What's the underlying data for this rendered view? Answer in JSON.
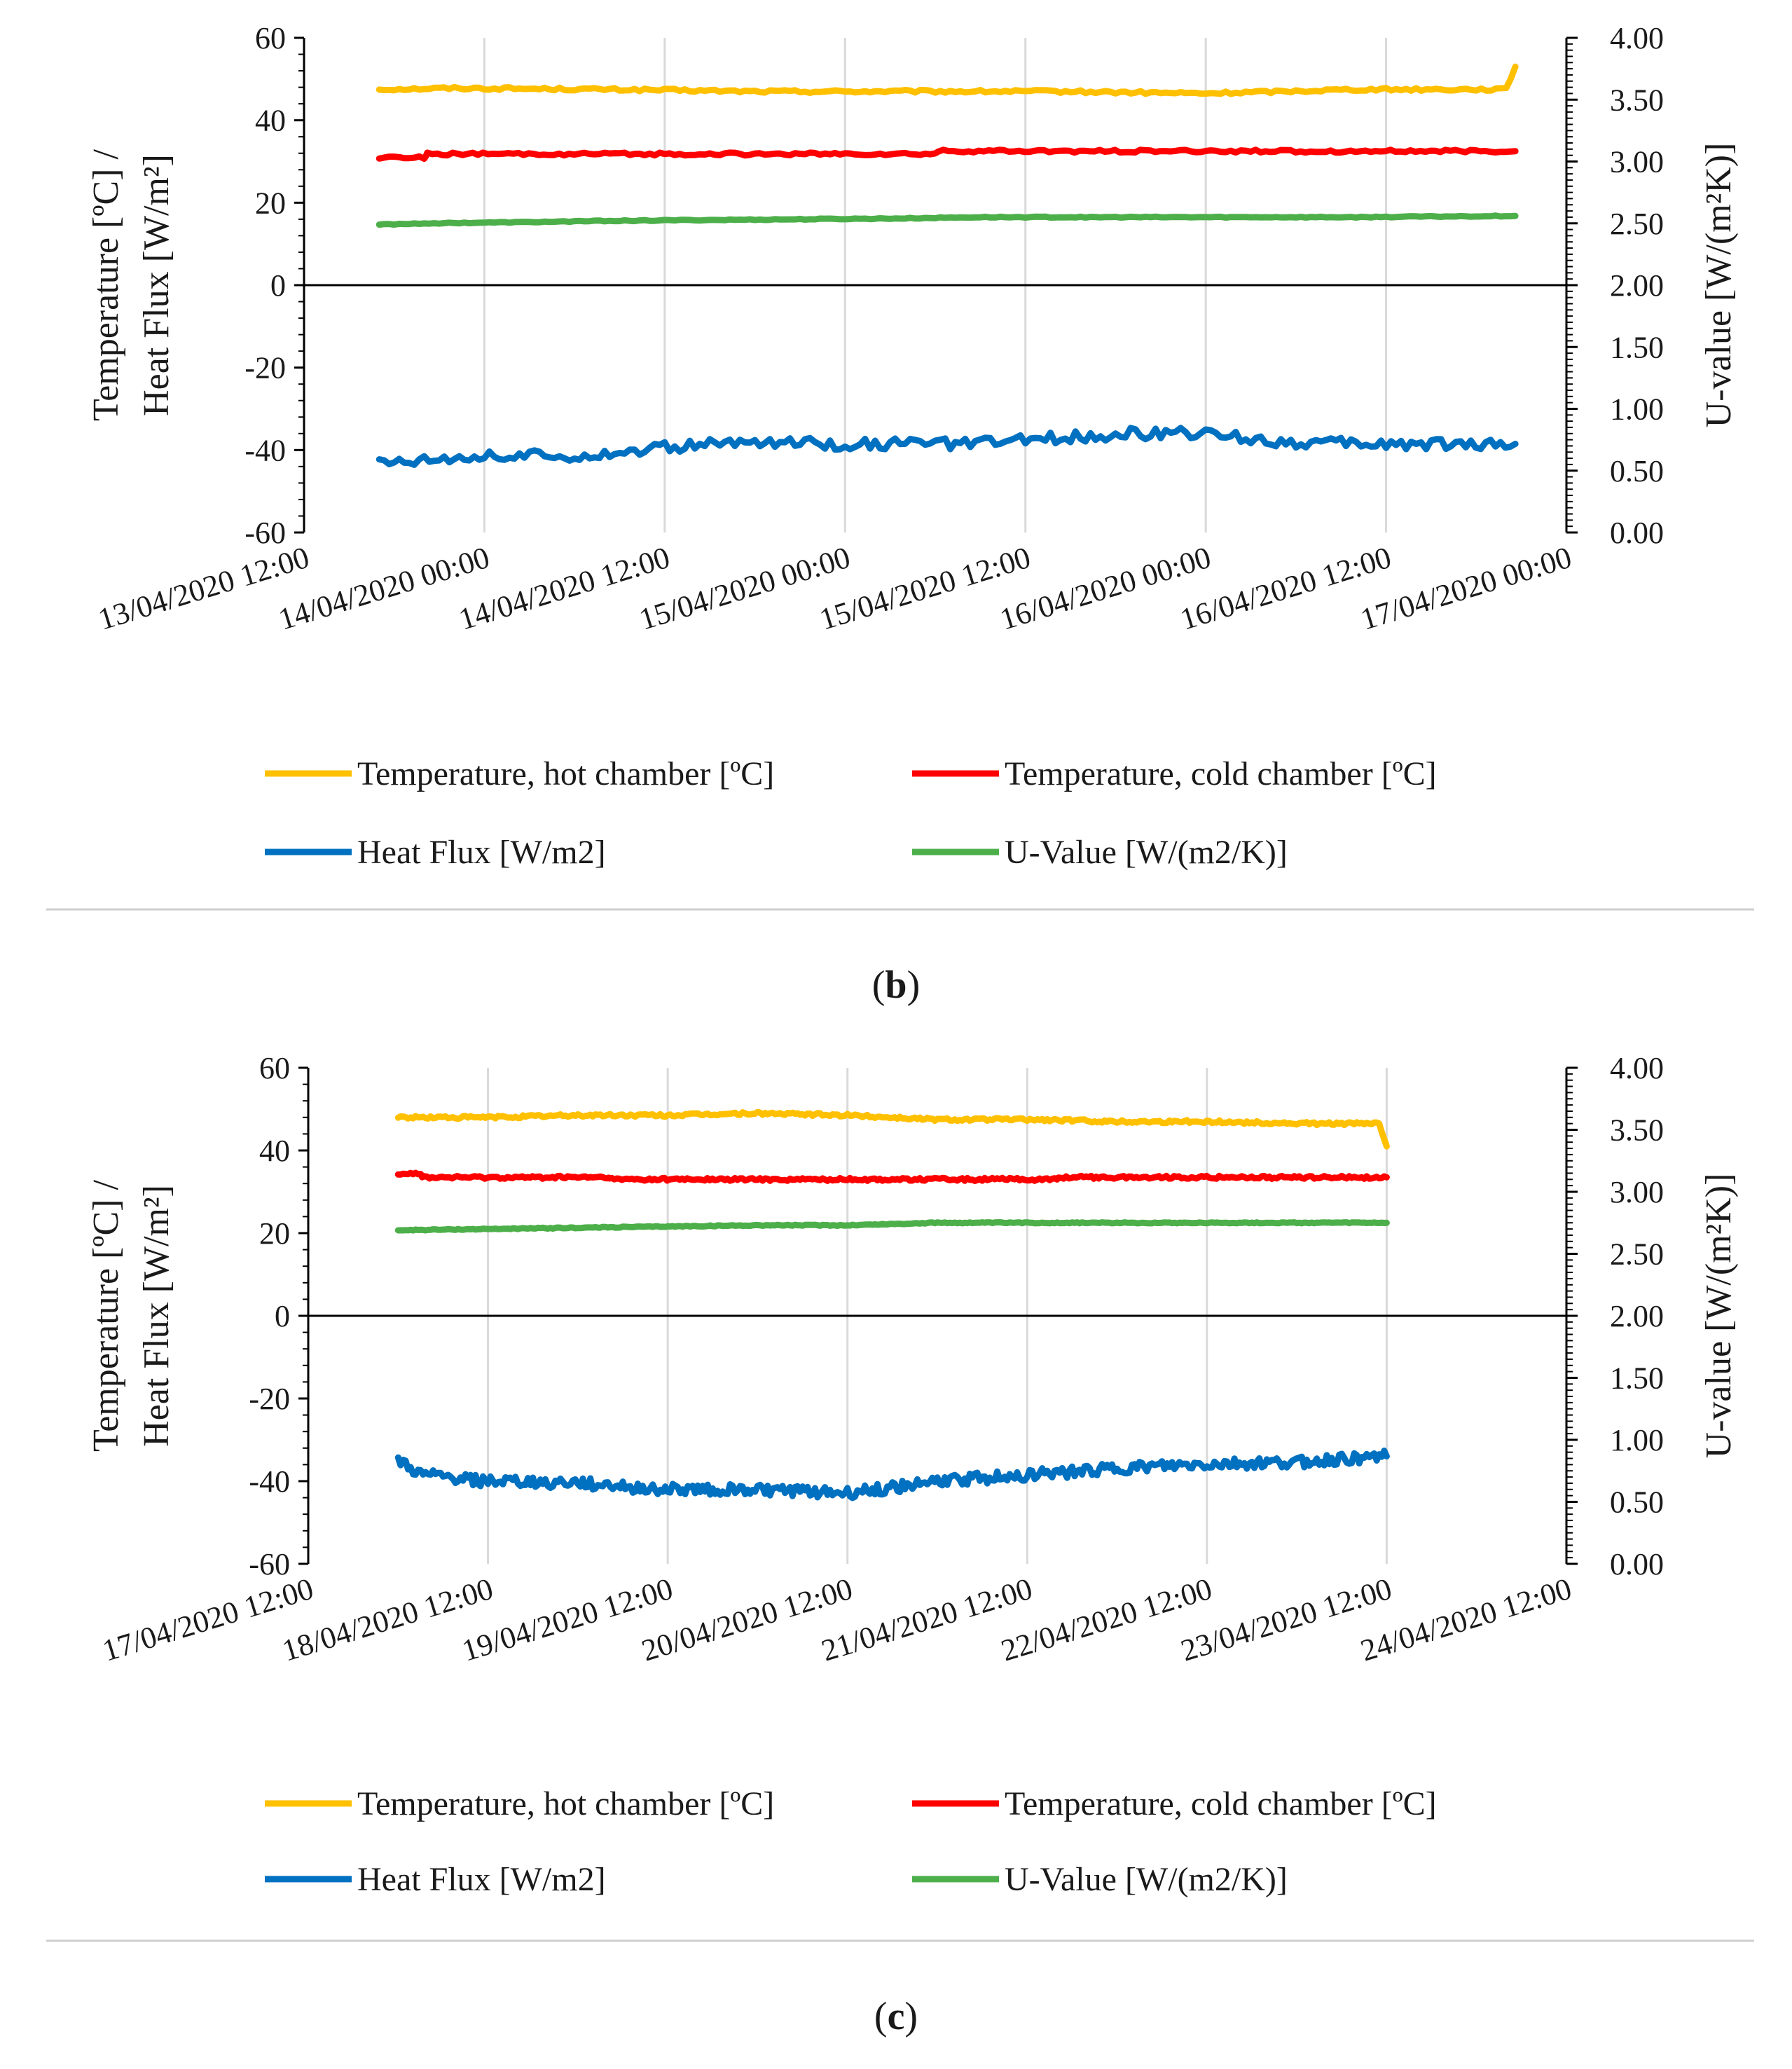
{
  "chart_data": [
    {
      "type": "line",
      "panel": "b",
      "caption_label": "b",
      "y_left": {
        "label": "Temperature [ºC] / Heat Flux [W/m²]",
        "label_line1": "Temperature [ºC] /",
        "label_line2": "Heat Flux [W/m²]",
        "range": [
          -60,
          60
        ],
        "ticks": [
          "60",
          "40",
          "20",
          "0",
          "-20",
          "-40",
          "-60"
        ]
      },
      "y_right": {
        "label": "U-value [W/(m²K)]",
        "range": [
          0,
          4
        ],
        "ticks": [
          "4.00",
          "3.50",
          "3.00",
          "2.50",
          "2.00",
          "1.50",
          "1.00",
          "0.50",
          "0.00"
        ]
      },
      "x": {
        "range_hours": [
          0,
          84
        ],
        "ticks": [
          "13/04/2020 12:00",
          "14/04/2020 00:00",
          "14/04/2020 12:00",
          "15/04/2020 00:00",
          "15/04/2020 12:00",
          "16/04/2020 00:00",
          "16/04/2020 12:00",
          "17/04/2020 00:00"
        ]
      },
      "gridlines": true,
      "series": [
        {
          "name": "Temperature, hot chamber [ºC]",
          "color": "#FFC000",
          "axis": "left",
          "x_hours": [
            5,
            10,
            20,
            30,
            40,
            50,
            60,
            70,
            78,
            80,
            80.6
          ],
          "values": [
            47.5,
            47.8,
            47.5,
            47,
            47,
            47,
            46.5,
            47.5,
            47.5,
            47.5,
            53
          ]
        },
        {
          "name": "Temperature, cold chamber [ºC]",
          "color": "#FF0000",
          "axis": "left",
          "x_hours": [
            5,
            8,
            8.2,
            20,
            30,
            38,
            40,
            42,
            42.2,
            60,
            80.6
          ],
          "values": [
            31,
            31,
            31.8,
            31.8,
            31.8,
            31.8,
            31.8,
            31.8,
            32.5,
            32.5,
            32.5
          ]
        },
        {
          "name": "Heat Flux [W/m2]",
          "color": "#0070C0",
          "axis": "left",
          "x_hours": [
            5,
            10,
            15,
            20,
            25,
            30,
            35,
            40,
            45,
            50,
            55,
            60,
            65,
            70,
            75,
            80.6
          ],
          "values": [
            -43,
            -41.5,
            -41.5,
            -41,
            -39,
            -38,
            -38.5,
            -38.5,
            -38.5,
            -37,
            -36,
            -36,
            -38,
            -38.5,
            -38.5,
            -38.5
          ]
        },
        {
          "name": "U-Value [W/(m2/K)]",
          "color": "#4DAF4A",
          "axis": "right",
          "x_hours": [
            5,
            8,
            15,
            20,
            30,
            40,
            45,
            50,
            60,
            70,
            80.6
          ],
          "values": [
            2.49,
            2.5,
            2.51,
            2.52,
            2.53,
            2.54,
            2.55,
            2.55,
            2.55,
            2.55,
            2.56
          ]
        }
      ],
      "legend": [
        {
          "label": "Temperature, hot chamber [ºC]",
          "color": "#FFC000"
        },
        {
          "label": "Temperature, cold chamber [ºC]",
          "color": "#FF0000"
        },
        {
          "label": "Heat Flux [W/m2]",
          "color": "#0070C0"
        },
        {
          "label": "U-Value [W/(m2/K)]",
          "color": "#4DAF4A"
        }
      ]
    },
    {
      "type": "line",
      "panel": "c",
      "caption_label": "c",
      "y_left": {
        "label": "Temperature [ºC] / Heat Flux [W/m²]",
        "label_line1": "Temperature [ºC] /",
        "label_line2": "Heat Flux [W/m²]",
        "range": [
          -60,
          60
        ],
        "ticks": [
          "60",
          "40",
          "20",
          "0",
          "-20",
          "-40",
          "-60"
        ]
      },
      "y_right": {
        "label": "U-value [W/(m²K)]",
        "range": [
          0,
          4
        ],
        "ticks": [
          "4.00",
          "3.50",
          "3.00",
          "2.50",
          "2.00",
          "1.50",
          "1.00",
          "0.50",
          "0.00"
        ]
      },
      "x": {
        "range_hours": [
          0,
          168
        ],
        "ticks": [
          "17/04/2020 12:00",
          "18/04/2020 12:00",
          "19/04/2020 12:00",
          "20/04/2020 12:00",
          "21/04/2020 12:00",
          "22/04/2020 12:00",
          "23/04/2020 12:00",
          "24/04/2020 12:00"
        ]
      },
      "gridlines": true,
      "series": [
        {
          "name": "Temperature, hot chamber [ºC]",
          "color": "#FFC000",
          "axis": "left",
          "x_hours": [
            12,
            24,
            36,
            48,
            60,
            72,
            84,
            96,
            108,
            120,
            132,
            143,
            144
          ],
          "values": [
            48,
            48,
            48.5,
            48.5,
            49,
            48.5,
            47.5,
            47.5,
            47,
            47,
            46.5,
            46.5,
            41
          ]
        },
        {
          "name": "Temperature, cold chamber [ºC]",
          "color": "#FF0000",
          "axis": "left",
          "x_hours": [
            12,
            15,
            15.2,
            40,
            40.2,
            60,
            80,
            100,
            100.2,
            130,
            144
          ],
          "values": [
            34.5,
            34.5,
            33.5,
            33.5,
            33,
            33,
            33,
            33,
            33.5,
            33.5,
            33.5
          ]
        },
        {
          "name": "Heat Flux [W/m2]",
          "color": "#0070C0",
          "axis": "left",
          "x_hours": [
            12,
            15,
            24,
            36,
            48,
            60,
            72,
            84,
            96,
            108,
            120,
            132,
            144
          ],
          "values": [
            -35,
            -38.5,
            -40,
            -40.5,
            -42,
            -42,
            -43,
            -40,
            -38.5,
            -37,
            -36,
            -35.5,
            -34
          ]
        },
        {
          "name": "U-Value [W/(m2/K)]",
          "color": "#4DAF4A",
          "axis": "right",
          "x_hours": [
            12,
            24,
            36,
            48,
            60,
            72,
            84,
            96,
            108,
            120,
            132,
            144
          ],
          "values": [
            2.69,
            2.7,
            2.71,
            2.72,
            2.73,
            2.73,
            2.75,
            2.75,
            2.75,
            2.75,
            2.75,
            2.75
          ]
        }
      ],
      "legend": [
        {
          "label": "Temperature, hot chamber [ºC]",
          "color": "#FFC000"
        },
        {
          "label": "Temperature, cold chamber [ºC]",
          "color": "#FF0000"
        },
        {
          "label": "Heat Flux [W/m2]",
          "color": "#0070C0"
        },
        {
          "label": "U-Value [W/(m2/K)]",
          "color": "#4DAF4A"
        }
      ]
    }
  ],
  "captions": {
    "b": {
      "open": "(",
      "label": "b",
      "close": ")"
    },
    "c": {
      "open": "(",
      "label": "c",
      "close": ")"
    }
  }
}
